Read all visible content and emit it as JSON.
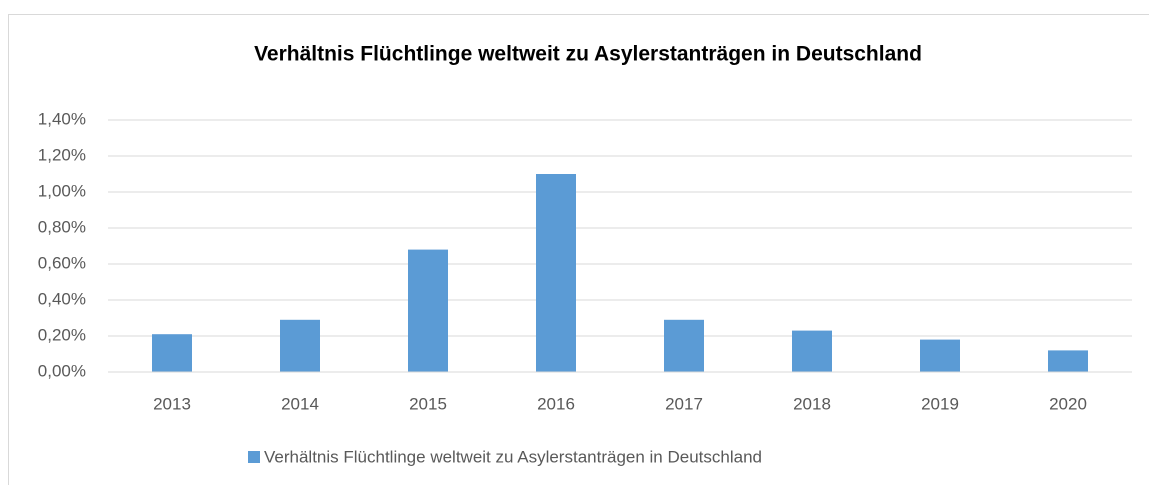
{
  "chart_data": {
    "type": "bar",
    "title": "Verhältnis Flüchtlinge weltweit zu Asylerstanträgen in Deutschland",
    "categories": [
      "2013",
      "2014",
      "2015",
      "2016",
      "2017",
      "2018",
      "2019",
      "2020"
    ],
    "series": [
      {
        "name": "Verhältnis Flüchtlinge weltweit zu Asylerstanträgen in Deutschland",
        "color": "#5b9bd5",
        "values": [
          0.21,
          0.29,
          0.68,
          1.1,
          0.29,
          0.23,
          0.18,
          0.12
        ]
      }
    ],
    "ylim": [
      0,
      1.4
    ],
    "yticks": [
      {
        "value": 0,
        "label": "0,00%"
      },
      {
        "value": 0.2,
        "label": "0,20%"
      },
      {
        "value": 0.4,
        "label": "0,40%"
      },
      {
        "value": 0.6,
        "label": "0,60%"
      },
      {
        "value": 0.8,
        "label": "0,80%"
      },
      {
        "value": 1.0,
        "label": "1,00%"
      },
      {
        "value": 1.2,
        "label": "1,20%"
      },
      {
        "value": 1.4,
        "label": "1,40%"
      }
    ],
    "grid": true,
    "legend": "bottom"
  }
}
